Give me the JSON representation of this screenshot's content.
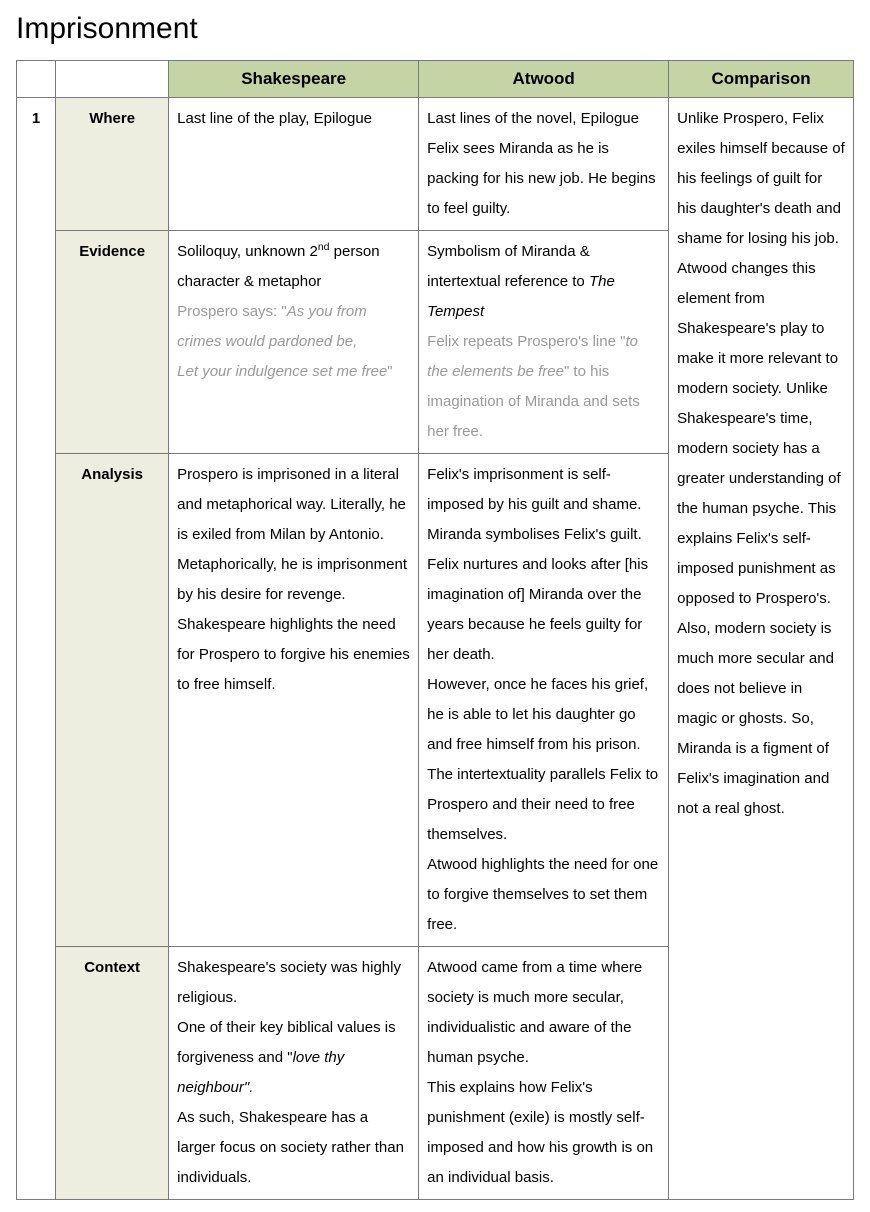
{
  "title": "Imprisonment",
  "headers": {
    "shakespeare": "Shakespeare",
    "atwood": "Atwood",
    "comparison": "Comparison"
  },
  "row_num": "1",
  "labels": {
    "where": "Where",
    "evidence": "Evidence",
    "analysis": "Analysis",
    "context": "Context"
  },
  "where": {
    "shakespeare": "Last line of the play, Epilogue",
    "atwood_l1": "Last lines of the novel, Epilogue",
    "atwood_l2": "Felix sees Miranda as he is packing for his new job. He begins to feel guilty."
  },
  "evidence": {
    "shakespeare_intro_pre": "Soliloquy, unknown 2",
    "shakespeare_intro_sup": "nd",
    "shakespeare_intro_post": " person character & metaphor",
    "shakespeare_grey_pre": "Prospero says: \"",
    "shakespeare_quote": "As you from crimes would pardoned be,",
    "shakespeare_quote2": "Let your indulgence set me free",
    "shakespeare_grey_post": "\"",
    "atwood_intro_pre": "Symbolism of Miranda & intertextual reference to ",
    "atwood_intro_italic": "The Tempest",
    "atwood_grey_pre": "Felix repeats Prospero's line \"",
    "atwood_quote": "to the elements be free",
    "atwood_grey_post": "\" to his imagination of Miranda and sets her free."
  },
  "analysis": {
    "shakespeare": "Prospero is imprisoned in a literal and metaphorical way. Literally, he is exiled from Milan by Antonio.\nMetaphorically, he is imprisonment by his desire for revenge.\nShakespeare highlights the need for Prospero to forgive his enemies to free himself.",
    "atwood": "Felix's imprisonment is self-imposed by his guilt and shame. Miranda symbolises Felix's guilt. Felix nurtures and looks after [his imagination of] Miranda over the years because he feels guilty for her death.\nHowever, once he faces his grief, he is able to let his daughter go and free himself from his prison.\nThe intertextuality parallels Felix to Prospero and their need to free themselves.\nAtwood highlights the need for one to forgive themselves to set them free."
  },
  "context": {
    "shakespeare_pre": "Shakespeare's society was highly religious.\nOne of their key biblical values is forgiveness and \"",
    "shakespeare_quote": "love thy neighbour\".",
    "shakespeare_post": "\nAs such, Shakespeare has a larger focus on society rather than individuals.",
    "atwood": "Atwood came from a time where society is much more secular, individualistic and aware of the human psyche.\nThis explains how Felix's punishment (exile) is mostly self-imposed and how his growth is on an individual basis."
  },
  "comparison": "Unlike Prospero, Felix exiles himself because of his feelings of guilt for his daughter's death and shame for losing his job. Atwood changes this element from Shakespeare's play to make it more relevant to modern society. Unlike Shakespeare's time, modern society has a greater understanding of the human psyche. This explains Felix's self-imposed punishment as opposed to Prospero's.\nAlso, modern society is much more secular and does not believe in magic or ghosts. So, Miranda is a figment of Felix's imagination and not a real ghost."
}
